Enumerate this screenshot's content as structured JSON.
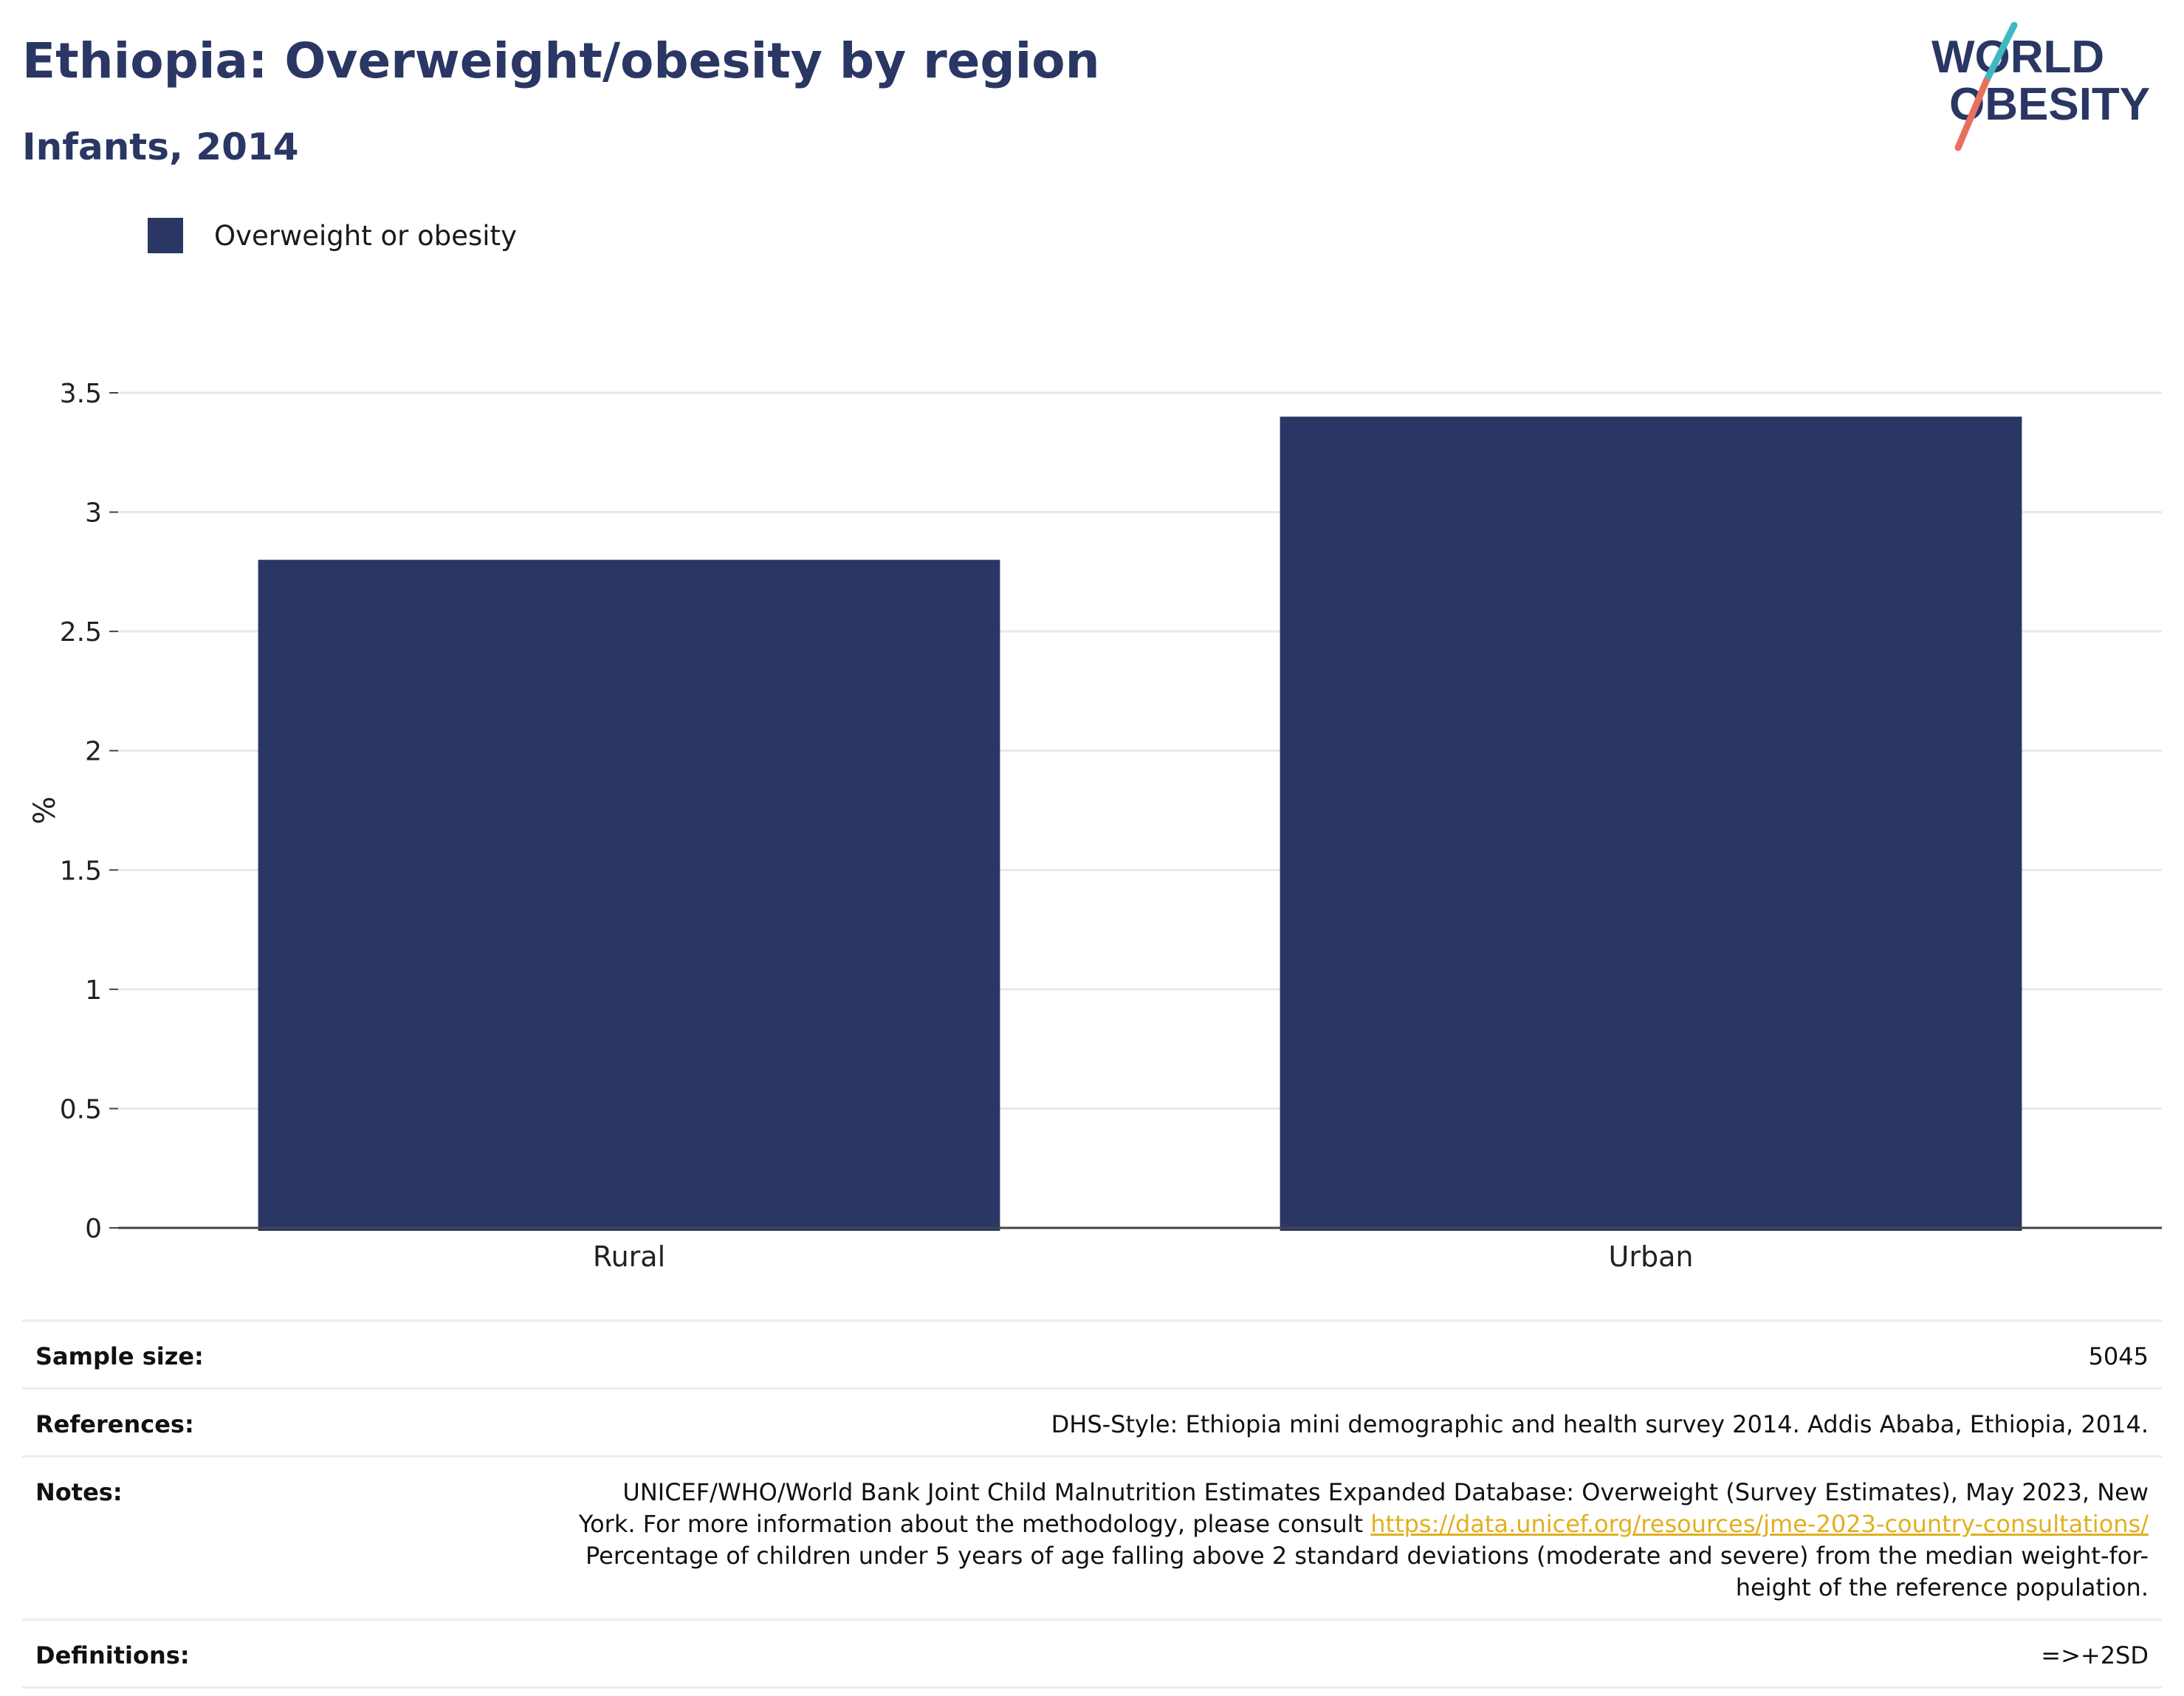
{
  "header": {
    "title": "Ethiopia: Overweight/obesity by region",
    "subtitle": "Infants, 2014"
  },
  "logo": {
    "line1": "WORLD",
    "line2": "OBESITY",
    "colors": {
      "text": "#2a3663",
      "slash_top": "#3fb8c1",
      "slash_bottom": "#e8705d"
    }
  },
  "legend": {
    "label": "Overweight or obesity",
    "color": "#2a3663"
  },
  "chart_data": {
    "type": "bar",
    "categories": [
      "Rural",
      "Urban"
    ],
    "series": [
      {
        "name": "Overweight or obesity",
        "values": [
          2.8,
          3.4
        ],
        "color": "#2a3663"
      }
    ],
    "ylabel": "%",
    "xlabel": "",
    "ylim": [
      0,
      3.5
    ],
    "yticks": [
      "0",
      "0.5",
      "1",
      "1.5",
      "2",
      "2.5",
      "3",
      "3.5"
    ],
    "grid": true,
    "legend_position": "top-left"
  },
  "info": {
    "sample_size_label": "Sample size:",
    "sample_size_value": "5045",
    "references_label": "References:",
    "references_value": "DHS-Style: Ethiopia mini demographic and health survey 2014. Addis Ababa, Ethiopia, 2014.",
    "notes_label": "Notes:",
    "notes_text1": "UNICEF/WHO/World Bank Joint Child Malnutrition Estimates Expanded Database: Overweight (Survey Estimates), May 2023, New York. For more information about the methodology, please consult ",
    "notes_link": "https://data.unicef.org/resources/jme-2023-country-consultations/",
    "notes_text2": " Percentage of children under 5 years of age falling above 2 standard deviations (moderate and severe) from the median weight-for-height of the reference population.",
    "definitions_label": "Definitions:",
    "definitions_value": "=>+2SD"
  }
}
